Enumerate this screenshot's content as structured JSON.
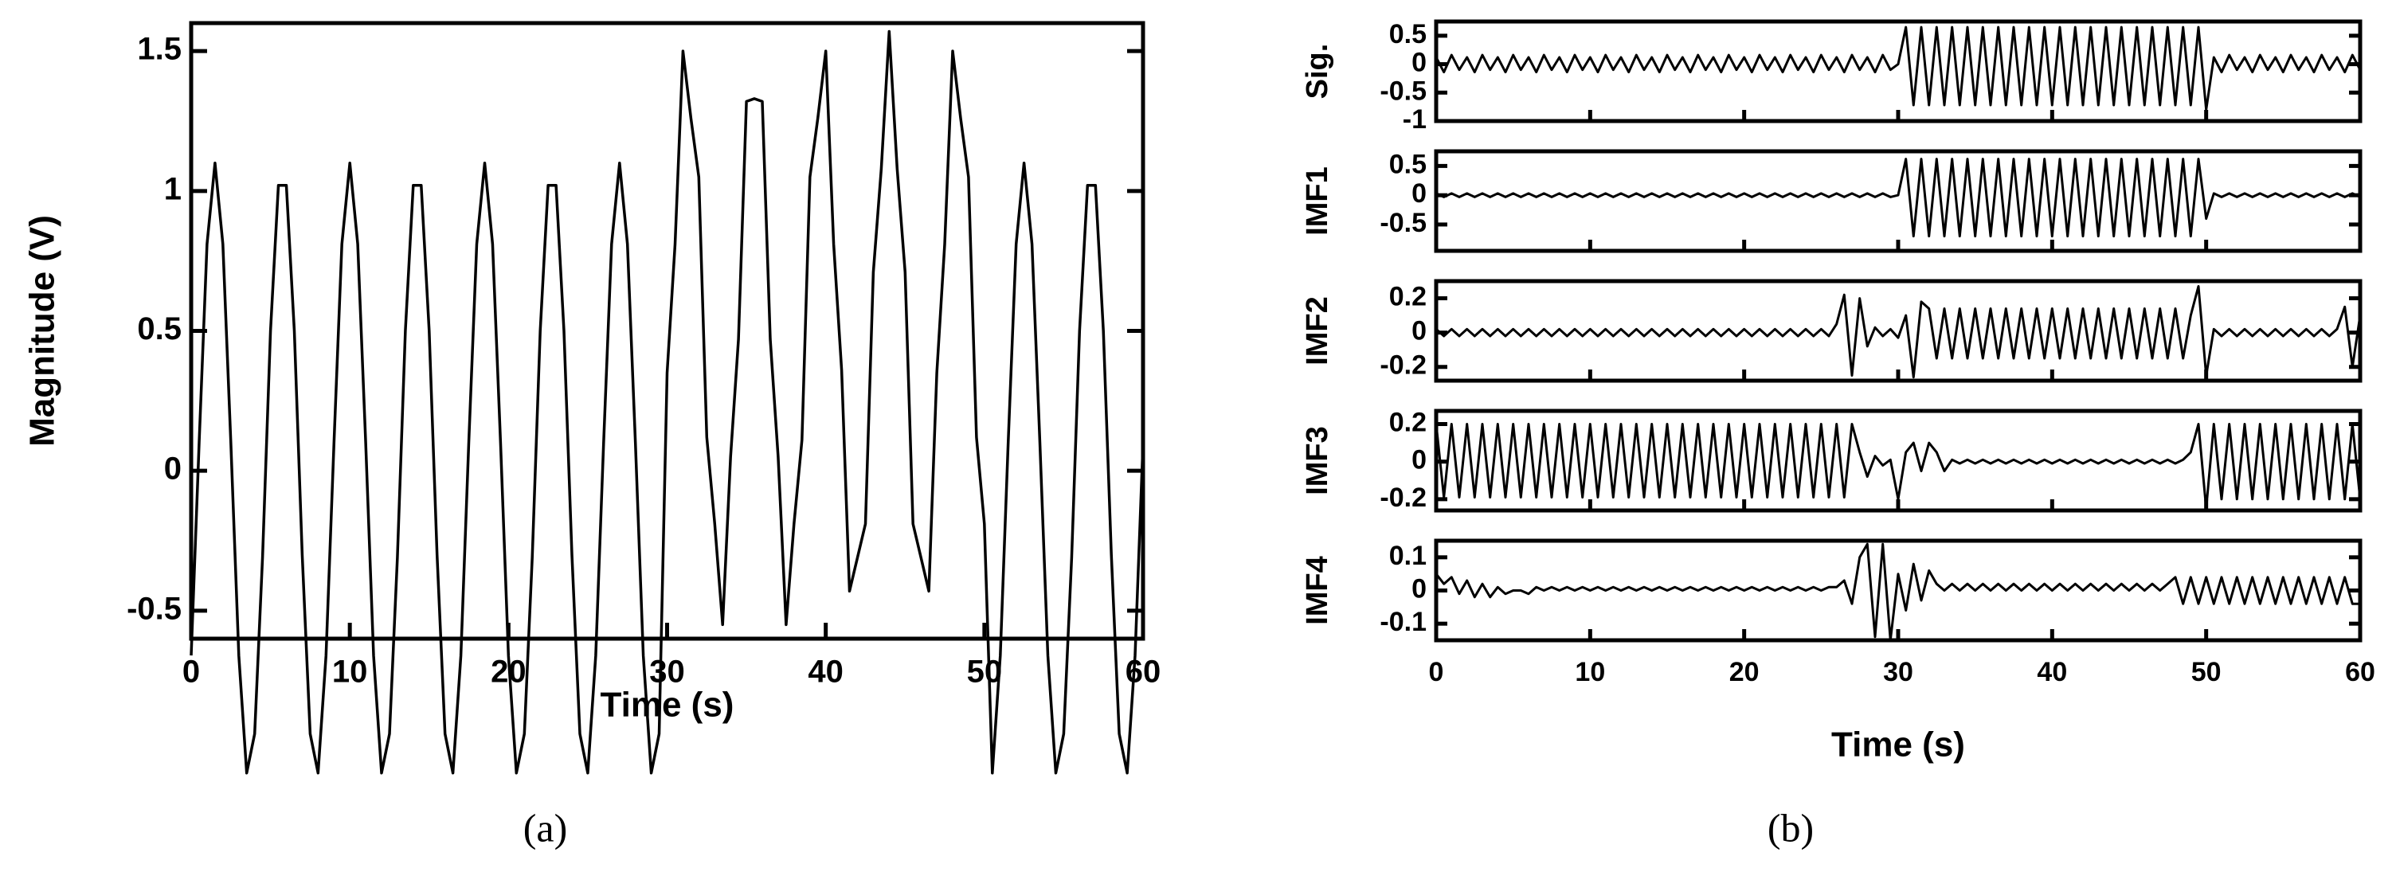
{
  "chart_data": [
    {
      "type": "line",
      "caption": "(a)",
      "xlabel": "Time (s)",
      "ylabel": "Magnitude (V)",
      "xlim": [
        0,
        60
      ],
      "xticks": [
        0,
        10,
        20,
        30,
        40,
        50,
        60
      ],
      "ylim": [
        -0.6,
        1.6
      ],
      "yticks": [
        -0.5,
        0,
        0.5,
        1,
        1.5
      ],
      "color": "#000000",
      "x": [
        0,
        0.5,
        1,
        1.5,
        2,
        2.5,
        3,
        3.5,
        4,
        4.5,
        5,
        5.5,
        6,
        6.5,
        7,
        7.5,
        8,
        8.5,
        9,
        9.5,
        10,
        10.5,
        11,
        11.5,
        12,
        12.5,
        13,
        13.5,
        14,
        14.5,
        15,
        15.5,
        16,
        16.5,
        17,
        17.5,
        18,
        18.5,
        19,
        19.5,
        20,
        20.5,
        21,
        21.5,
        22,
        22.5,
        23,
        23.5,
        24,
        24.5,
        25,
        25.5,
        26,
        26.5,
        27,
        27.5,
        28,
        28.5,
        29,
        29.5,
        30,
        30.5,
        31,
        31.5,
        32,
        32.5,
        33,
        33.5,
        34,
        34.5,
        35,
        35.5,
        36,
        36.5,
        37,
        37.5,
        38,
        38.5,
        39,
        39.5,
        40,
        40.5,
        41,
        41.5,
        42,
        42.5,
        43,
        43.5,
        44,
        44.5,
        45,
        45.5,
        46,
        46.5,
        47,
        47.5,
        48,
        48.5,
        49,
        49.5,
        50,
        50.5,
        51,
        51.5,
        52,
        52.5,
        53,
        53.5,
        54,
        54.5,
        55,
        55.5,
        56,
        56.5,
        57,
        57.5,
        58,
        58.5,
        59,
        59.5,
        60
      ],
      "values": [
        -0.66,
        0.1,
        0.81,
        1.1,
        0.81,
        0.1,
        -0.66,
        -1.08,
        -0.94,
        -0.31,
        0.5,
        1.02,
        1.02,
        0.5,
        -0.3,
        -0.94,
        -1.08,
        -0.66,
        0.1,
        0.81,
        1.1,
        0.81,
        0.1,
        -0.66,
        -1.08,
        -0.94,
        -0.31,
        0.5,
        1.02,
        1.02,
        0.5,
        -0.3,
        -0.94,
        -1.08,
        -0.66,
        0.1,
        0.81,
        1.1,
        0.81,
        0.1,
        -0.66,
        -1.08,
        -0.94,
        -0.31,
        0.5,
        1.02,
        1.02,
        0.5,
        -0.3,
        -0.94,
        -1.08,
        -0.66,
        0.1,
        0.81,
        1.1,
        0.81,
        0.1,
        -0.66,
        -1.08,
        -0.94,
        0.35,
        0.81,
        1.5,
        1.26,
        1.05,
        0.12,
        -0.19,
        -0.55,
        0.05,
        0.47,
        1.32,
        1.33,
        1.32,
        0.47,
        0.05,
        -0.55,
        -0.19,
        0.11,
        1.05,
        1.26,
        1.5,
        0.81,
        0.36,
        -0.43,
        -0.31,
        -0.19,
        0.71,
        1.08,
        1.57,
        1.08,
        0.71,
        -0.19,
        -0.31,
        -0.43,
        0.35,
        0.81,
        1.5,
        1.26,
        1.05,
        0.12,
        -0.19,
        -1.08,
        -0.66,
        0.1,
        0.81,
        1.1,
        0.81,
        0.1,
        -0.66,
        -1.08,
        -0.94,
        -0.31,
        0.5,
        1.02,
        1.02,
        0.5,
        -0.3,
        -0.94,
        -1.08,
        -0.66,
        0.1
      ]
    },
    {
      "type": "stacked-lines",
      "caption": "(b)",
      "xlabel": "Time (s)",
      "xlim": [
        0,
        60
      ],
      "xticks": [
        0,
        10,
        20,
        30,
        40,
        50,
        60
      ],
      "color": "#000000",
      "x": [
        0,
        0.5,
        1,
        1.5,
        2,
        2.5,
        3,
        3.5,
        4,
        4.5,
        5,
        5.5,
        6,
        6.5,
        7,
        7.5,
        8,
        8.5,
        9,
        9.5,
        10,
        10.5,
        11,
        11.5,
        12,
        12.5,
        13,
        13.5,
        14,
        14.5,
        15,
        15.5,
        16,
        16.5,
        17,
        17.5,
        18,
        18.5,
        19,
        19.5,
        20,
        20.5,
        21,
        21.5,
        22,
        22.5,
        23,
        23.5,
        24,
        24.5,
        25,
        25.5,
        26,
        26.5,
        27,
        27.5,
        28,
        28.5,
        29,
        29.5,
        30,
        30.5,
        31,
        31.5,
        32,
        32.5,
        33,
        33.5,
        34,
        34.5,
        35,
        35.5,
        36,
        36.5,
        37,
        37.5,
        38,
        38.5,
        39,
        39.5,
        40,
        40.5,
        41,
        41.5,
        42,
        42.5,
        43,
        43.5,
        44,
        44.5,
        45,
        45.5,
        46,
        46.5,
        47,
        47.5,
        48,
        48.5,
        49,
        49.5,
        50,
        50.5,
        51,
        51.5,
        52,
        52.5,
        53,
        53.5,
        54,
        54.5,
        55,
        55.5,
        56,
        56.5,
        57,
        57.5,
        58,
        58.5,
        59,
        59.5,
        60
      ],
      "panels": [
        {
          "ylabel": "Sig.",
          "ylim": [
            -1,
            0.75
          ],
          "yticks": [
            0.5,
            0,
            -0.5,
            -1
          ],
          "values": [
            0.12,
            -0.14,
            0.16,
            -0.1,
            0.12,
            -0.14,
            0.16,
            -0.1,
            0.12,
            -0.14,
            0.16,
            -0.1,
            0.12,
            -0.14,
            0.16,
            -0.1,
            0.12,
            -0.14,
            0.16,
            -0.1,
            0.12,
            -0.14,
            0.16,
            -0.1,
            0.12,
            -0.14,
            0.16,
            -0.1,
            0.12,
            -0.14,
            0.16,
            -0.1,
            0.12,
            -0.14,
            0.16,
            -0.1,
            0.12,
            -0.14,
            0.16,
            -0.1,
            0.12,
            -0.14,
            0.16,
            -0.1,
            0.12,
            -0.14,
            0.16,
            -0.1,
            0.12,
            -0.14,
            0.16,
            -0.1,
            0.12,
            -0.14,
            0.16,
            -0.1,
            0.12,
            -0.14,
            0.16,
            -0.1,
            0,
            0.65,
            -0.72,
            0.65,
            -0.72,
            0.65,
            -0.72,
            0.65,
            -0.72,
            0.65,
            -0.72,
            0.65,
            -0.72,
            0.65,
            -0.72,
            0.65,
            -0.72,
            0.65,
            -0.72,
            0.65,
            -0.72,
            0.65,
            -0.72,
            0.65,
            -0.72,
            0.65,
            -0.72,
            0.65,
            -0.72,
            0.65,
            -0.72,
            0.65,
            -0.72,
            0.65,
            -0.72,
            0.65,
            -0.72,
            0.65,
            -0.72,
            0.65,
            -0.8,
            0.12,
            -0.14,
            0.16,
            -0.1,
            0.12,
            -0.14,
            0.16,
            -0.1,
            0.12,
            -0.14,
            0.16,
            -0.1,
            0.12,
            -0.14,
            0.16,
            -0.1,
            0.12,
            -0.14,
            0.16,
            -0.1
          ]
        },
        {
          "ylabel": "IMF1",
          "ylim": [
            -0.95,
            0.75
          ],
          "yticks": [
            0.5,
            0,
            -0.5
          ],
          "values": [
            0.03,
            -0.03,
            0.03,
            -0.03,
            0.03,
            -0.03,
            0.03,
            -0.03,
            0.03,
            -0.03,
            0.03,
            -0.03,
            0.03,
            -0.03,
            0.03,
            -0.03,
            0.03,
            -0.03,
            0.03,
            -0.03,
            0.03,
            -0.03,
            0.03,
            -0.03,
            0.03,
            -0.03,
            0.03,
            -0.03,
            0.03,
            -0.03,
            0.03,
            -0.03,
            0.03,
            -0.03,
            0.03,
            -0.03,
            0.03,
            -0.03,
            0.03,
            -0.03,
            0.03,
            -0.03,
            0.03,
            -0.03,
            0.03,
            -0.03,
            0.03,
            -0.03,
            0.03,
            -0.03,
            0.03,
            -0.03,
            0.03,
            -0.03,
            0.03,
            -0.03,
            0.03,
            -0.03,
            0.03,
            -0.03,
            0,
            0.62,
            -0.7,
            0.62,
            -0.7,
            0.62,
            -0.7,
            0.62,
            -0.7,
            0.62,
            -0.7,
            0.62,
            -0.7,
            0.62,
            -0.7,
            0.62,
            -0.7,
            0.62,
            -0.7,
            0.62,
            -0.7,
            0.62,
            -0.7,
            0.62,
            -0.7,
            0.62,
            -0.7,
            0.62,
            -0.7,
            0.62,
            -0.7,
            0.62,
            -0.7,
            0.62,
            -0.7,
            0.62,
            -0.7,
            0.62,
            -0.7,
            0.62,
            -0.4,
            0.03,
            -0.03,
            0.03,
            -0.03,
            0.03,
            -0.03,
            0.03,
            -0.03,
            0.03,
            -0.03,
            0.03,
            -0.03,
            0.03,
            -0.03,
            0.03,
            -0.03,
            0.03,
            -0.03,
            0.03,
            -0.03
          ]
        },
        {
          "ylabel": "IMF2",
          "ylim": [
            -0.28,
            0.3
          ],
          "yticks": [
            0.2,
            0,
            -0.2
          ],
          "values": [
            0.02,
            -0.02,
            0.02,
            -0.02,
            0.02,
            -0.02,
            0.02,
            -0.02,
            0.02,
            -0.02,
            0.02,
            -0.02,
            0.02,
            -0.02,
            0.02,
            -0.02,
            0.02,
            -0.02,
            0.02,
            -0.02,
            0.02,
            -0.02,
            0.02,
            -0.02,
            0.02,
            -0.02,
            0.02,
            -0.02,
            0.02,
            -0.02,
            0.02,
            -0.02,
            0.02,
            -0.02,
            0.02,
            -0.02,
            0.02,
            -0.02,
            0.02,
            -0.02,
            0.02,
            -0.02,
            0.02,
            -0.02,
            0.02,
            -0.02,
            0.02,
            -0.02,
            0.02,
            -0.02,
            0.02,
            -0.02,
            0.05,
            0.22,
            -0.25,
            0.2,
            -0.08,
            0.03,
            -0.02,
            0.02,
            -0.03,
            0.1,
            -0.26,
            0.18,
            0.14,
            -0.15,
            0.14,
            -0.15,
            0.14,
            -0.15,
            0.14,
            -0.15,
            0.14,
            -0.15,
            0.14,
            -0.15,
            0.14,
            -0.15,
            0.14,
            -0.15,
            0.14,
            -0.15,
            0.14,
            -0.15,
            0.14,
            -0.15,
            0.14,
            -0.15,
            0.14,
            -0.15,
            0.14,
            -0.15,
            0.14,
            -0.15,
            0.14,
            -0.15,
            0.14,
            -0.15,
            0.1,
            0.27,
            -0.25,
            0.02,
            -0.02,
            0.02,
            -0.02,
            0.02,
            -0.02,
            0.02,
            -0.02,
            0.02,
            -0.02,
            0.02,
            -0.02,
            0.02,
            -0.02,
            0.02,
            -0.02,
            0.02,
            0.15,
            -0.2,
            0.1
          ]
        },
        {
          "ylabel": "IMF3",
          "ylim": [
            -0.26,
            0.27
          ],
          "yticks": [
            0.2,
            0,
            -0.2
          ],
          "values": [
            0.2,
            -0.19,
            0.2,
            -0.19,
            0.2,
            -0.19,
            0.2,
            -0.19,
            0.2,
            -0.19,
            0.2,
            -0.19,
            0.2,
            -0.19,
            0.2,
            -0.19,
            0.2,
            -0.19,
            0.2,
            -0.19,
            0.2,
            -0.19,
            0.2,
            -0.19,
            0.2,
            -0.19,
            0.2,
            -0.19,
            0.2,
            -0.19,
            0.2,
            -0.19,
            0.2,
            -0.19,
            0.2,
            -0.19,
            0.2,
            -0.19,
            0.2,
            -0.19,
            0.2,
            -0.19,
            0.2,
            -0.19,
            0.2,
            -0.19,
            0.2,
            -0.19,
            0.2,
            -0.19,
            0.2,
            -0.19,
            0.2,
            -0.19,
            0.2,
            0.05,
            -0.08,
            0.03,
            -0.02,
            0.01,
            -0.2,
            0.05,
            0.1,
            -0.05,
            0.1,
            0.05,
            -0.05,
            0.01,
            -0.01,
            0.01,
            -0.01,
            0.01,
            -0.01,
            0.01,
            -0.01,
            0.01,
            -0.01,
            0.01,
            -0.01,
            0.01,
            -0.01,
            0.01,
            -0.01,
            0.01,
            -0.01,
            0.01,
            -0.01,
            0.01,
            -0.01,
            0.01,
            -0.01,
            0.01,
            -0.01,
            0.01,
            -0.01,
            0.01,
            -0.01,
            0.01,
            0.05,
            0.2,
            -0.25,
            0.2,
            -0.2,
            0.2,
            -0.2,
            0.2,
            -0.2,
            0.2,
            -0.2,
            0.2,
            -0.2,
            0.2,
            -0.2,
            0.2,
            -0.2,
            0.2,
            -0.2,
            0.2,
            -0.2,
            0.2,
            -0.2
          ]
        },
        {
          "ylabel": "IMF4",
          "ylim": [
            -0.15,
            0.15
          ],
          "yticks": [
            0.1,
            0,
            -0.1
          ],
          "values": [
            0.05,
            0.02,
            0.04,
            -0.01,
            0.03,
            -0.02,
            0.02,
            -0.02,
            0.01,
            -0.01,
            0.0,
            0.0,
            -0.01,
            0.01,
            0.0,
            0.01,
            0.0,
            0.01,
            0.0,
            0.01,
            0.0,
            0.01,
            0.0,
            0.01,
            0.0,
            0.01,
            0.0,
            0.01,
            0.0,
            0.01,
            0.0,
            0.01,
            0.0,
            0.01,
            0.0,
            0.01,
            0.0,
            0.01,
            0.0,
            0.01,
            0.0,
            0.01,
            0.0,
            0.01,
            0.0,
            0.01,
            0.0,
            0.01,
            0.0,
            0.01,
            0.0,
            0.01,
            0.01,
            0.03,
            -0.04,
            0.1,
            0.14,
            -0.14,
            0.14,
            -0.15,
            0.05,
            -0.06,
            0.08,
            -0.03,
            0.06,
            0.02,
            0.0,
            0.02,
            0.0,
            0.02,
            0.0,
            0.02,
            0.0,
            0.02,
            0.0,
            0.02,
            0.0,
            0.02,
            0.0,
            0.02,
            0.0,
            0.02,
            0.0,
            0.02,
            0.0,
            0.02,
            0.0,
            0.02,
            0.0,
            0.02,
            0.0,
            0.02,
            0.0,
            0.02,
            0.0,
            0.02,
            0.04,
            -0.04,
            0.04,
            -0.04,
            0.04,
            -0.04,
            0.04,
            -0.04,
            0.04,
            -0.04,
            0.04,
            -0.04,
            0.04,
            -0.04,
            0.04,
            -0.04,
            0.04,
            -0.04,
            0.04,
            -0.04,
            0.04,
            -0.04,
            0.04,
            -0.04,
            -0.04
          ]
        }
      ]
    }
  ]
}
